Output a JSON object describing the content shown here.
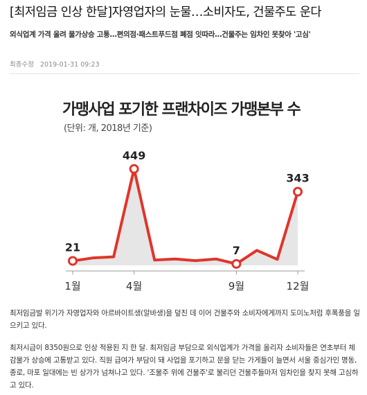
{
  "article": {
    "headline": "[최저임금 인상 한달]자영업자의 눈물…소비자도, 건물주도 운다",
    "subheadline": "외식업계 가격 올려 물가상승 고통…편의점·패스트푸드점 폐점 잇따라…건물주는 임차인 못찾아 '고심'",
    "meta_label": "최종수정",
    "meta_datetime": "2019-01-31 09:23",
    "paragraphs": [
      "최저임금발 위기가 자영업자와 아르바이트생(알바생)을 덮친 데 이어 건물주와 소비자에게까지 도미노처럼 후폭풍을 일으키고 있다.",
      "최저시급이 8350원으로 인상 적용된 지 한 달. 최저임금 부담으로 외식업계가 가격을 올리자 소비자들은 연초부터 체감물가 상승에 고통받고 있다. 직원 급여가 부담이 돼 사업을 포기하고 문을 닫는 가게들이 늘면서 서울 중심가인 명동, 종로, 마포 일대에는 빈 상가가 넘쳐나고 있다. '조물주 위에 건물주'로 불리던 건물주들마저 임차인을 찾지 못해 고심하고 있다."
    ]
  },
  "chart_data": {
    "type": "line",
    "title": "가맹사업 포기한 프랜차이즈 가맹본부 수",
    "subtitle": "(단위: 개, 2018년 기준)",
    "x": [
      1,
      2,
      3,
      4,
      5,
      6,
      7,
      8,
      9,
      10,
      11,
      12
    ],
    "x_tick_labels": [
      {
        "x": 1,
        "label": "1월"
      },
      {
        "x": 4,
        "label": "4월"
      },
      {
        "x": 9,
        "label": "9월"
      },
      {
        "x": 12,
        "label": "12월"
      }
    ],
    "values": [
      21,
      35,
      40,
      449,
      25,
      30,
      22,
      30,
      7,
      70,
      28,
      343
    ],
    "labeled_points": [
      {
        "x": 1,
        "label": "21"
      },
      {
        "x": 4,
        "label": "449"
      },
      {
        "x": 9,
        "label": "7"
      },
      {
        "x": 12,
        "label": "343"
      }
    ],
    "ylim": [
      0,
      500
    ],
    "grid": false,
    "colors": {
      "line": "#e0352b",
      "area": "#e6e6e6",
      "marker_fill": "#ffffff",
      "axis": "#999999"
    }
  }
}
